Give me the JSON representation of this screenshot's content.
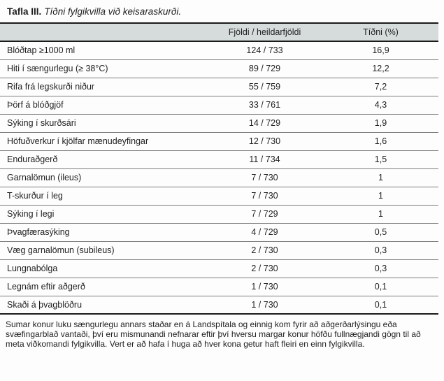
{
  "title": {
    "label": "Tafla III.",
    "text": "Tíðni fylgikvilla við keisaraskurði."
  },
  "table": {
    "headers": {
      "complication": "",
      "count": "Fjöldi / heildarfjöldi",
      "frequency": "Tíðni (%)"
    },
    "rows": [
      {
        "label": "Blóðtap ≥1000 ml",
        "count": "124 / 733",
        "frequency": "16,9"
      },
      {
        "label": "Hiti í sængurlegu (≥ 38°C)",
        "count": "89 / 729",
        "frequency": "12,2"
      },
      {
        "label": "Rifa frá legskurði niður",
        "count": "55 / 759",
        "frequency": "7,2"
      },
      {
        "label": "Þörf á blóðgjöf",
        "count": "33 / 761",
        "frequency": "4,3"
      },
      {
        "label": "Sýking í skurðsári",
        "count": "14 / 729",
        "frequency": "1,9"
      },
      {
        "label": "Höfuðverkur í kjölfar mænudeyfingar",
        "count": "12 / 730",
        "frequency": "1,6"
      },
      {
        "label": "Enduraðgerð",
        "count": "11 / 734",
        "frequency": "1,5"
      },
      {
        "label": "Garnalömun (ileus)",
        "count": "7 / 730",
        "frequency": "1"
      },
      {
        "label": "T-skurður í leg",
        "count": "7 / 730",
        "frequency": "1"
      },
      {
        "label": "Sýking í legi",
        "count": "7 / 729",
        "frequency": "1"
      },
      {
        "label": "Þvagfærasýking",
        "count": "4 / 729",
        "frequency": "0,5"
      },
      {
        "label": "Væg garnalömun (subileus)",
        "count": "2 / 730",
        "frequency": "0,3"
      },
      {
        "label": "Lungnabólga",
        "count": "2 / 730",
        "frequency": "0,3"
      },
      {
        "label": "Legnám eftir aðgerð",
        "count": "1 / 730",
        "frequency": "0,1"
      },
      {
        "label": "Skaði á þvagblöðru",
        "count": "1 / 730",
        "frequency": "0,1"
      }
    ]
  },
  "footnote": {
    "text": "Sumar konur luku sængurlegu annars staðar en á Landspítala og einnig kom fyrir að aðgerðarlýsingu eða svæfingarblað vantaði, því eru mismunandi nefnarar eftir því hversu margar konur höfðu fullnægjandi gögn til að meta viðkomandi fylgikvilla. Vert er að hafa í huga að hver kona getur haft fleiri en einn fylgikvilla."
  },
  "colors": {
    "header_background": "#d6dcdc",
    "heavy_rule": "#1a1a1a",
    "row_rule": "#7d7d7d",
    "text": "#1f1f1f",
    "page_background": "#fdfdfd"
  }
}
